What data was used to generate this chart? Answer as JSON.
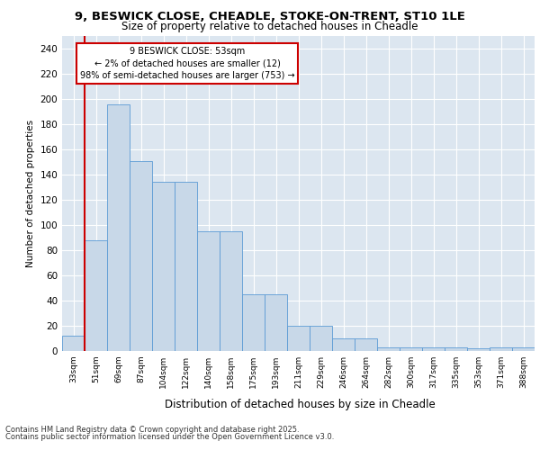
{
  "title_line1": "9, BESWICK CLOSE, CHEADLE, STOKE-ON-TRENT, ST10 1LE",
  "title_line2": "Size of property relative to detached houses in Cheadle",
  "xlabel": "Distribution of detached houses by size in Cheadle",
  "ylabel": "Number of detached properties",
  "categories": [
    "33sqm",
    "51sqm",
    "69sqm",
    "87sqm",
    "104sqm",
    "122sqm",
    "140sqm",
    "158sqm",
    "175sqm",
    "193sqm",
    "211sqm",
    "229sqm",
    "246sqm",
    "264sqm",
    "282sqm",
    "300sqm",
    "317sqm",
    "335sqm",
    "353sqm",
    "371sqm",
    "388sqm"
  ],
  "values": [
    12,
    88,
    196,
    151,
    134,
    134,
    95,
    95,
    45,
    45,
    20,
    20,
    10,
    10,
    3,
    3,
    3,
    3,
    2,
    3,
    3
  ],
  "bar_fill": "#c8d8e8",
  "bar_edge": "#5b9bd5",
  "annotation_box_edge": "#cc0000",
  "annotation_text": "9 BESWICK CLOSE: 53sqm\n← 2% of detached houses are smaller (12)\n98% of semi-detached houses are larger (753) →",
  "vline_color": "#cc0000",
  "ylim": [
    0,
    250
  ],
  "yticks": [
    0,
    20,
    40,
    60,
    80,
    100,
    120,
    140,
    160,
    180,
    200,
    220,
    240
  ],
  "plot_background": "#dce6f0",
  "grid_color": "#ffffff",
  "footer_line1": "Contains HM Land Registry data © Crown copyright and database right 2025.",
  "footer_line2": "Contains public sector information licensed under the Open Government Licence v3.0."
}
